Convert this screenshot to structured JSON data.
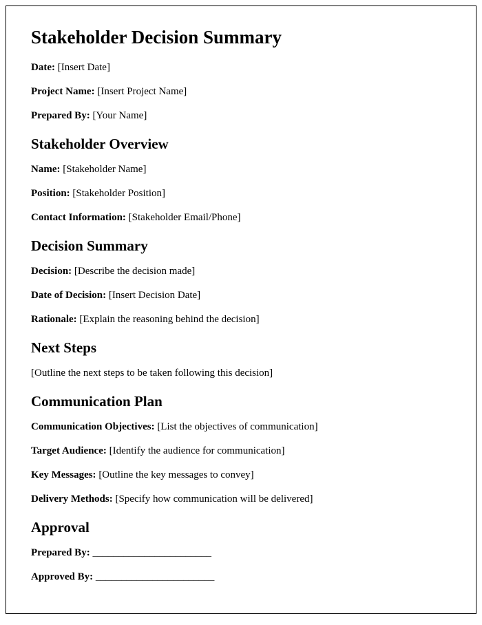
{
  "title": "Stakeholder Decision Summary",
  "header_fields": [
    {
      "label": "Date:",
      "value": "[Insert Date]"
    },
    {
      "label": "Project Name:",
      "value": "[Insert Project Name]"
    },
    {
      "label": "Prepared By:",
      "value": "[Your Name]"
    }
  ],
  "sections": {
    "stakeholder_overview": {
      "title": "Stakeholder Overview",
      "fields": [
        {
          "label": "Name:",
          "value": "[Stakeholder Name]"
        },
        {
          "label": "Position:",
          "value": "[Stakeholder Position]"
        },
        {
          "label": "Contact Information:",
          "value": "[Stakeholder Email/Phone]"
        }
      ]
    },
    "decision_summary": {
      "title": "Decision Summary",
      "fields": [
        {
          "label": "Decision:",
          "value": "[Describe the decision made]"
        },
        {
          "label": "Date of Decision:",
          "value": "[Insert Decision Date]"
        },
        {
          "label": "Rationale:",
          "value": "[Explain the reasoning behind the decision]"
        }
      ]
    },
    "next_steps": {
      "title": "Next Steps",
      "text": "[Outline the next steps to be taken following this decision]"
    },
    "communication_plan": {
      "title": "Communication Plan",
      "fields": [
        {
          "label": "Communication Objectives:",
          "value": "[List the objectives of communication]"
        },
        {
          "label": "Target Audience:",
          "value": "[Identify the audience for communication]"
        },
        {
          "label": "Key Messages:",
          "value": "[Outline the key messages to convey]"
        },
        {
          "label": "Delivery Methods:",
          "value": "[Specify how communication will be delivered]"
        }
      ]
    },
    "approval": {
      "title": "Approval",
      "fields": [
        {
          "label": "Prepared By:",
          "value": "_______________________"
        },
        {
          "label": "Approved By:",
          "value": "_______________________"
        }
      ]
    }
  }
}
